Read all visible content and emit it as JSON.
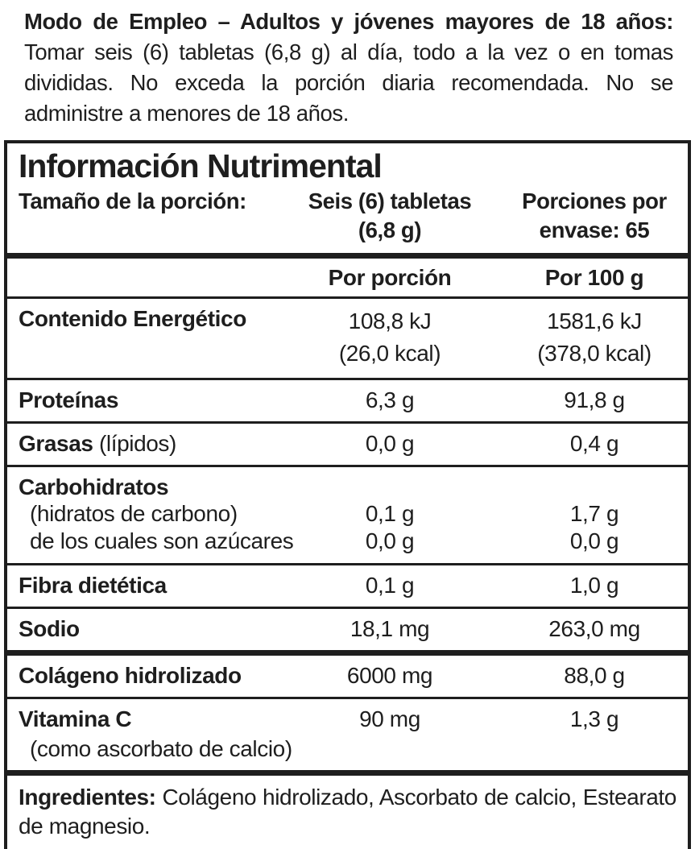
{
  "usage": {
    "lead": "Modo de Empleo – Adultos y jóvenes mayores de 18 años:",
    "body": "Tomar seis (6) tabletas (6,8 g) al día, todo a la vez o en tomas divididas. No exceda la porción diaria recomendada. No se administre a menores de 18 años."
  },
  "panel": {
    "title": "Información Nutrimental",
    "serving": {
      "label": "Tamaño de la porción:",
      "size": "Seis (6) tabletas\n(6,8 g)",
      "per_container": "Porciones por\nenvase: 65"
    },
    "columns": {
      "per_serving": "Por porción",
      "per_100g": "Por 100 g"
    },
    "rows": [
      {
        "name": "Contenido Energético",
        "per_serving": "108,8 kJ\n(26,0 kcal)",
        "per_100g": "1581,6 kJ\n(378,0 kcal)"
      },
      {
        "name": "Proteínas",
        "per_serving": "6,3 g",
        "per_100g": "91,8 g"
      },
      {
        "name": "Grasas",
        "note": "(lípidos)",
        "per_serving": "0,0 g",
        "per_100g": "0,4 g"
      },
      {
        "name": "Carbohidratos",
        "sub": [
          {
            "label": "(hidratos de carbono)",
            "per_serving": "0,1 g",
            "per_100g": "1,7 g"
          },
          {
            "label": "de los cuales son azúcares",
            "per_serving": "0,0 g",
            "per_100g": "0,0 g"
          }
        ]
      },
      {
        "name": "Fibra dietética",
        "per_serving": "0,1 g",
        "per_100g": "1,0 g"
      },
      {
        "name": "Sodio",
        "per_serving": "18,1 mg",
        "per_100g": "263,0 mg"
      },
      {
        "name": "Colágeno hidrolizado",
        "per_serving": "6000 mg",
        "per_100g": "88,0 g"
      },
      {
        "name": "Vitamina C",
        "note": "(como ascorbato de calcio)",
        "per_serving": "90 mg",
        "per_100g": "1,3 g"
      }
    ],
    "ingredients": {
      "lead": "Ingredientes:",
      "body": "Colágeno hidrolizado, Ascorbato de calcio, Estearato de magnesio."
    }
  },
  "colors": {
    "ink": "#1e1e1e",
    "background": "#ffffff"
  }
}
